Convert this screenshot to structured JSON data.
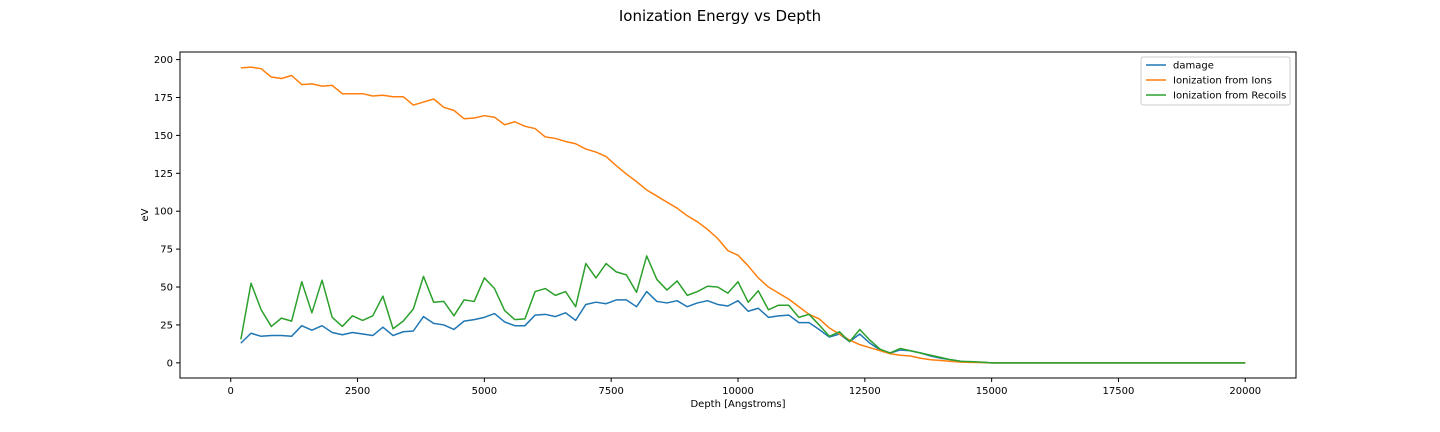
{
  "chart_data": {
    "type": "line",
    "title": "Ionization Energy vs Depth",
    "xlabel": "Depth [Angstroms]",
    "ylabel": "eV",
    "xlim": [
      -1000,
      21000
    ],
    "ylim": [
      -10,
      205
    ],
    "xticks": [
      0,
      2500,
      5000,
      7500,
      10000,
      12500,
      15000,
      17500,
      20000
    ],
    "yticks": [
      0,
      25,
      50,
      75,
      100,
      125,
      150,
      175,
      200
    ],
    "grid": false,
    "legend_position": "top-right",
    "x": [
      200,
      400,
      600,
      800,
      1000,
      1200,
      1400,
      1600,
      1800,
      2000,
      2200,
      2400,
      2600,
      2800,
      3000,
      3200,
      3400,
      3600,
      3800,
      4000,
      4200,
      4400,
      4600,
      4800,
      5000,
      5200,
      5400,
      5600,
      5800,
      6000,
      6200,
      6400,
      6600,
      6800,
      7000,
      7200,
      7400,
      7600,
      7800,
      8000,
      8200,
      8400,
      8600,
      8800,
      9000,
      9200,
      9400,
      9600,
      9800,
      10000,
      10200,
      10400,
      10600,
      10800,
      11000,
      11200,
      11400,
      11600,
      11800,
      12000,
      12200,
      12400,
      12600,
      12800,
      13000,
      13200,
      13400,
      13600,
      13800,
      14000,
      14200,
      14400,
      14600,
      14800,
      15000,
      15200,
      15400,
      15600,
      15800,
      16000,
      16200,
      16400,
      16600,
      16800,
      17000,
      17200,
      17400,
      17600,
      17800,
      18000,
      18200,
      18400,
      18600,
      18800,
      19000,
      19200,
      19400,
      19600,
      19800,
      20000
    ],
    "series": [
      {
        "name": "damage",
        "color": "#1f77b4",
        "values": [
          13,
          19.5,
          17.5,
          18,
          18,
          17.5,
          24.5,
          21.5,
          24.5,
          20,
          18.5,
          20,
          19,
          18,
          23.5,
          18,
          20.5,
          21,
          30.5,
          26,
          25,
          22,
          27.5,
          28.5,
          30,
          32.5,
          27,
          24.5,
          24.5,
          31.5,
          32,
          30.5,
          33,
          28,
          38.5,
          40,
          39,
          41.5,
          41.5,
          37,
          47,
          40.5,
          39.5,
          41,
          37,
          39.5,
          41,
          38.5,
          37.5,
          41,
          34,
          36,
          30,
          31,
          31.5,
          26.5,
          26.5,
          22,
          17,
          19,
          14,
          19,
          13,
          8.5,
          6.5,
          8.5,
          8,
          6.5,
          4.5,
          3,
          2,
          1,
          0.5,
          0.3,
          0,
          0,
          0,
          0,
          0,
          0,
          0,
          0,
          0,
          0,
          0,
          0,
          0,
          0,
          0,
          0,
          0,
          0,
          0,
          0,
          0,
          0,
          0,
          0,
          0,
          0
        ]
      },
      {
        "name": "Ionization from Ions",
        "color": "#ff7f0e",
        "values": [
          194.5,
          195,
          194,
          188.5,
          187.5,
          189.5,
          183.5,
          184,
          182.5,
          183,
          177.5,
          177.5,
          177.5,
          176,
          176.5,
          175.5,
          175.5,
          170,
          172,
          174,
          168.5,
          166.5,
          161,
          161.5,
          163,
          162,
          157,
          159,
          156,
          154.5,
          149,
          148,
          146,
          144.5,
          141,
          139,
          136,
          130,
          124.5,
          119.5,
          114,
          110,
          106,
          102,
          97,
          93,
          88,
          82,
          74,
          71,
          64,
          56,
          50,
          46,
          42,
          37,
          32,
          29,
          23,
          19,
          15,
          12,
          10,
          8,
          6,
          5,
          4.5,
          3,
          2,
          1.5,
          1,
          0.5,
          0.3,
          0.2,
          0,
          0,
          0,
          0,
          0,
          0,
          0,
          0,
          0,
          0,
          0,
          0,
          0,
          0,
          0,
          0,
          0,
          0,
          0,
          0,
          0,
          0,
          0,
          0,
          0,
          0
        ]
      },
      {
        "name": "Ionization from Recoils",
        "color": "#2ca02c",
        "values": [
          15.5,
          52.5,
          35,
          24,
          29.5,
          27.5,
          53.5,
          33,
          54.5,
          30,
          24,
          31,
          28,
          31,
          44,
          22.5,
          27.5,
          35.5,
          57,
          40,
          40.5,
          31,
          41.5,
          40.5,
          56,
          49,
          34.5,
          28.5,
          29,
          47,
          49,
          44.5,
          47,
          37,
          65.5,
          56,
          65.5,
          60,
          58,
          46.5,
          70.5,
          55,
          48,
          54,
          44.5,
          47,
          50.5,
          50,
          46,
          53.5,
          40,
          47.5,
          35,
          38,
          38,
          30,
          32,
          25,
          17.5,
          20.5,
          14,
          22,
          15,
          9,
          6.5,
          9.5,
          8,
          6.5,
          5,
          3.5,
          2,
          1,
          0.8,
          0.5,
          0,
          0,
          0,
          0,
          0,
          0,
          0,
          0,
          0,
          0,
          0,
          0,
          0,
          0,
          0,
          0,
          0,
          0,
          0,
          0,
          0,
          0,
          0,
          0,
          0,
          0
        ]
      }
    ]
  }
}
